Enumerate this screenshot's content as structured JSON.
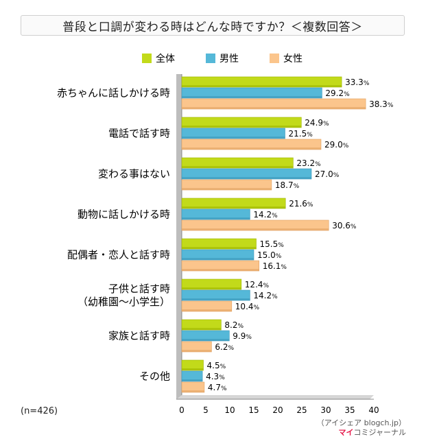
{
  "chart_data": {
    "type": "bar",
    "orientation": "horizontal",
    "title": "普段と口調が変わる時はどんな時ですか？＜複数回答＞",
    "categories": [
      [
        "赤ちゃんに話しかける時"
      ],
      [
        "電話で話す時"
      ],
      [
        "変わる事はない"
      ],
      [
        "動物に話しかける時"
      ],
      [
        "配偶者・恋人と話す時"
      ],
      [
        "子供と話す時",
        "（幼稚園〜小学生）"
      ],
      [
        "家族と話す時"
      ],
      [
        "その他"
      ]
    ],
    "series": [
      {
        "name": "全体",
        "color": "#c2da1a",
        "values": [
          33.3,
          24.9,
          23.2,
          21.6,
          15.5,
          12.4,
          8.2,
          4.5
        ]
      },
      {
        "name": "男性",
        "color": "#55b8d8",
        "values": [
          29.2,
          21.5,
          27.0,
          14.2,
          15.0,
          14.2,
          9.9,
          4.3
        ]
      },
      {
        "name": "女性",
        "color": "#fbc58c",
        "values": [
          38.3,
          29.0,
          18.7,
          30.6,
          16.1,
          10.4,
          6.2,
          4.7
        ]
      }
    ],
    "xlim": [
      0,
      40
    ],
    "xticks": [
      0,
      5,
      10,
      15,
      20,
      25,
      30,
      35,
      40
    ],
    "value_unit": "%",
    "legend_position": "top",
    "grid": false
  },
  "footnotes": {
    "sample_size": "(n=426)",
    "credit_line1": "（アイシェア blogch.jp）",
    "credit_brand": "マイ",
    "credit_rest": "コミジャーナル"
  }
}
